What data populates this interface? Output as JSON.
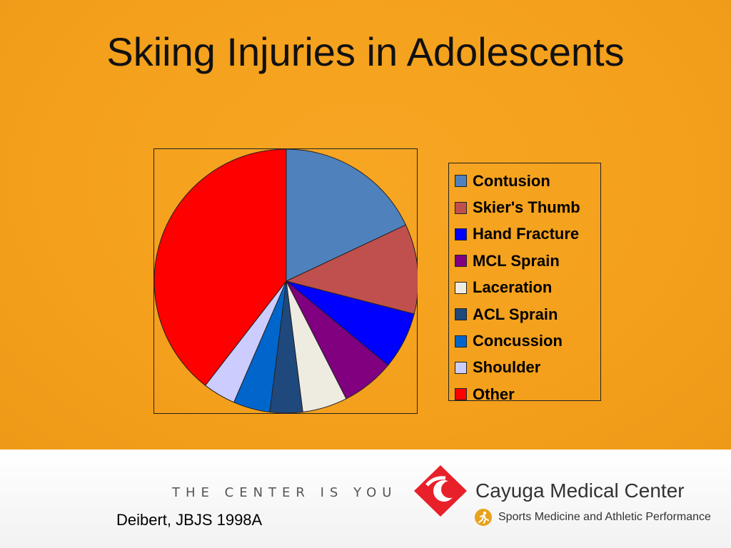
{
  "slide": {
    "title": "Skiing Injuries in Adolescents",
    "tagline": "THE CENTER IS YOU",
    "citation": "Deibert, JBJS 1998A"
  },
  "brand": {
    "name": "Cayuga Medical Center",
    "subtitle": "Sports Medicine and Athletic Performance",
    "logo_color": "#e8202a",
    "badge_color": "#e8a21d"
  },
  "chart_data": {
    "type": "pie",
    "title": "",
    "legend_position": "right",
    "slices": [
      {
        "label": "Contusion",
        "value": 18,
        "color": "#4f81bd"
      },
      {
        "label": "Skier's Thumb",
        "value": 11,
        "color": "#c0504d"
      },
      {
        "label": "Hand Fracture",
        "value": 7,
        "color": "#0000ff"
      },
      {
        "label": "MCL Sprain",
        "value": 6.5,
        "color": "#800080"
      },
      {
        "label": "Laceration",
        "value": 5.5,
        "color": "#eeece1"
      },
      {
        "label": "ACL Sprain",
        "value": 4,
        "color": "#1f497d"
      },
      {
        "label": "Concussion",
        "value": 4.5,
        "color": "#0066cc"
      },
      {
        "label": "Shoulder",
        "value": 4,
        "color": "#ccccff"
      },
      {
        "label": "Other",
        "value": 39.5,
        "color": "#ff0000"
      }
    ]
  }
}
